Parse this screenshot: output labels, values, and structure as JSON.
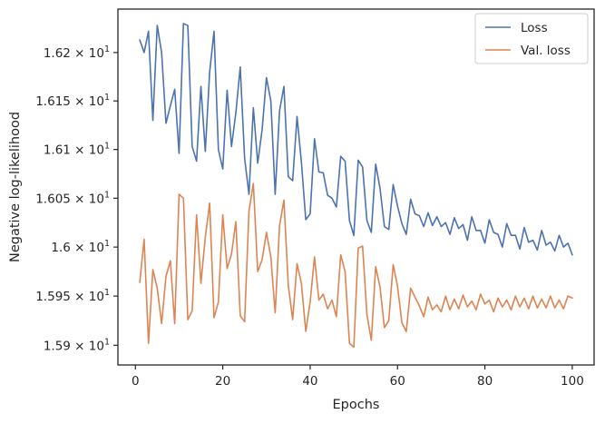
{
  "chart_data": {
    "type": "line",
    "title": "",
    "xlabel": "Epochs",
    "ylabel": "Negative log-likelihood",
    "xlim": [
      -4,
      105
    ],
    "ylim": [
      15.88,
      16.245
    ],
    "yscale": "log",
    "grid": false,
    "legend_position": "top-right",
    "x_ticks": [
      0,
      20,
      40,
      60,
      80,
      100
    ],
    "x_tick_labels": [
      "0",
      "20",
      "40",
      "60",
      "80",
      "100"
    ],
    "y_ticks": [
      15.9,
      15.95,
      16.0,
      16.05,
      16.1,
      16.15,
      16.2
    ],
    "y_tick_labels": [
      {
        "mant": "1.59",
        "exp": "1"
      },
      {
        "mant": "1.595",
        "exp": "1"
      },
      {
        "mant": "1.6",
        "exp": "1"
      },
      {
        "mant": "1.605",
        "exp": "1"
      },
      {
        "mant": "1.61",
        "exp": "1"
      },
      {
        "mant": "1.615",
        "exp": "1"
      },
      {
        "mant": "1.62",
        "exp": "1"
      }
    ],
    "x": [
      1,
      2,
      3,
      4,
      5,
      6,
      7,
      8,
      9,
      10,
      11,
      12,
      13,
      14,
      15,
      16,
      17,
      18,
      19,
      20,
      21,
      22,
      23,
      24,
      25,
      26,
      27,
      28,
      29,
      30,
      31,
      32,
      33,
      34,
      35,
      36,
      37,
      38,
      39,
      40,
      41,
      42,
      43,
      44,
      45,
      46,
      47,
      48,
      49,
      50,
      51,
      52,
      53,
      54,
      55,
      56,
      57,
      58,
      59,
      60,
      61,
      62,
      63,
      64,
      65,
      66,
      67,
      68,
      69,
      70,
      71,
      72,
      73,
      74,
      75,
      76,
      77,
      78,
      79,
      80,
      81,
      82,
      83,
      84,
      85,
      86,
      87,
      88,
      89,
      90,
      91,
      92,
      93,
      94,
      95,
      96,
      97,
      98,
      99,
      100
    ],
    "series": [
      {
        "name": "Loss",
        "color": "#4c72b0",
        "values": [
          16.213,
          16.2,
          16.222,
          16.13,
          16.228,
          16.2,
          16.127,
          16.145,
          16.162,
          16.096,
          16.23,
          16.228,
          16.103,
          16.088,
          16.165,
          16.098,
          16.18,
          16.222,
          16.1,
          16.08,
          16.161,
          16.103,
          16.138,
          16.185,
          16.091,
          16.054,
          16.143,
          16.086,
          16.12,
          16.174,
          16.15,
          16.054,
          16.14,
          16.165,
          16.072,
          16.068,
          16.134,
          16.087,
          16.028,
          16.034,
          16.111,
          16.077,
          16.076,
          16.053,
          16.05,
          16.041,
          16.093,
          16.088,
          16.027,
          16.012,
          16.089,
          16.082,
          16.027,
          16.015,
          16.085,
          16.06,
          16.021,
          16.018,
          16.064,
          16.042,
          16.024,
          16.013,
          16.049,
          16.034,
          16.032,
          16.021,
          16.035,
          16.022,
          16.031,
          16.021,
          16.025,
          16.013,
          16.03,
          16.019,
          16.023,
          16.007,
          16.031,
          16.017,
          16.017,
          16.004,
          16.028,
          16.015,
          16.013,
          16.0,
          16.024,
          16.012,
          16.012,
          15.998,
          16.02,
          16.005,
          16.007,
          15.997,
          16.017,
          16.002,
          16.005,
          15.996,
          16.012,
          16.0,
          16.004,
          15.992
        ]
      },
      {
        "name": "Val. loss",
        "color": "#dd8452",
        "values": [
          15.964,
          16.008,
          15.902,
          15.977,
          15.958,
          15.922,
          15.97,
          15.986,
          15.922,
          16.054,
          16.05,
          15.926,
          15.935,
          16.033,
          15.963,
          16.01,
          16.045,
          15.928,
          15.944,
          16.033,
          15.978,
          15.993,
          16.026,
          15.93,
          15.924,
          16.037,
          16.065,
          15.975,
          15.987,
          16.015,
          15.99,
          15.933,
          16.022,
          16.048,
          15.961,
          15.926,
          15.983,
          15.963,
          15.914,
          15.944,
          15.99,
          15.946,
          15.952,
          15.937,
          15.946,
          15.929,
          15.992,
          15.975,
          15.902,
          15.898,
          15.999,
          16.001,
          15.931,
          15.905,
          15.98,
          15.959,
          15.918,
          15.925,
          15.982,
          15.96,
          15.923,
          15.914,
          15.958,
          15.949,
          15.94,
          15.929,
          15.949,
          15.936,
          15.941,
          15.934,
          15.95,
          15.936,
          15.947,
          15.937,
          15.951,
          15.939,
          15.945,
          15.936,
          15.952,
          15.942,
          15.946,
          15.934,
          15.948,
          15.939,
          15.946,
          15.936,
          15.95,
          15.939,
          15.948,
          15.937,
          15.95,
          15.938,
          15.947,
          15.938,
          15.95,
          15.938,
          15.946,
          15.937,
          15.95,
          15.948
        ]
      }
    ]
  }
}
